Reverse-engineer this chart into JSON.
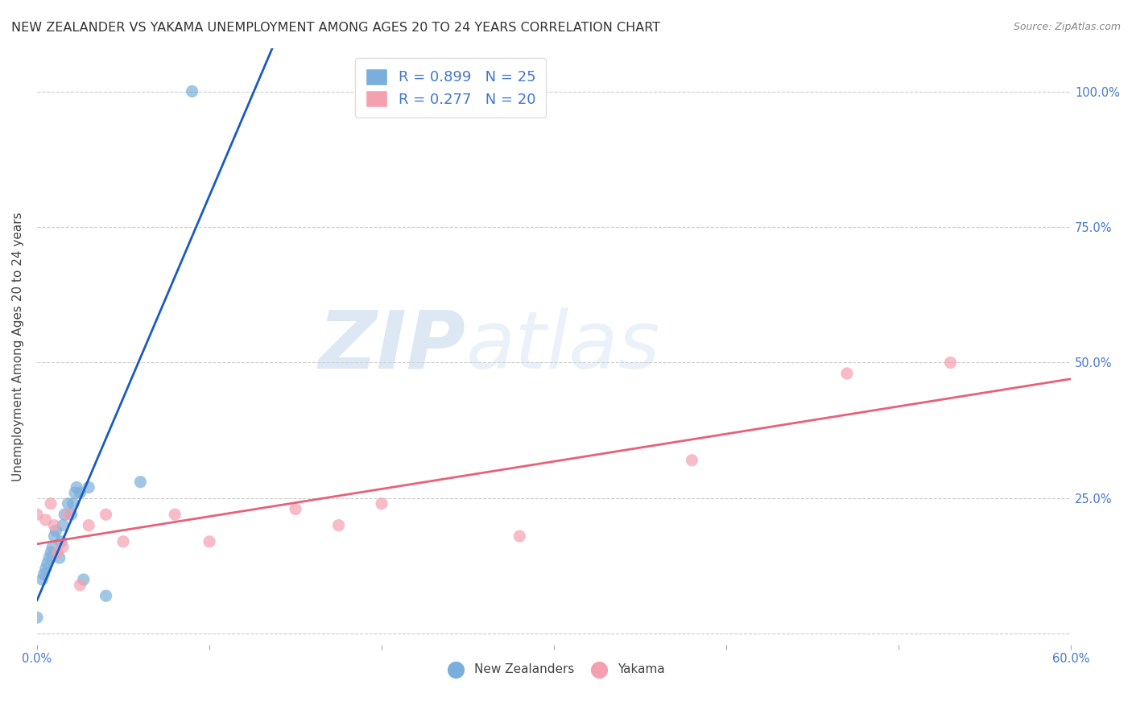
{
  "title": "NEW ZEALANDER VS YAKAMA UNEMPLOYMENT AMONG AGES 20 TO 24 YEARS CORRELATION CHART",
  "source": "Source: ZipAtlas.com",
  "ylabel": "Unemployment Among Ages 20 to 24 years",
  "xlim": [
    0.0,
    0.6
  ],
  "ylim": [
    -0.02,
    1.08
  ],
  "xticks": [
    0.0,
    0.1,
    0.2,
    0.3,
    0.4,
    0.5,
    0.6
  ],
  "xtick_labels_left": "0.0%",
  "xtick_labels_right": "60.0%",
  "ytick_positions": [
    0.0,
    0.25,
    0.5,
    0.75,
    1.0
  ],
  "ytick_labels": [
    "",
    "25.0%",
    "50.0%",
    "75.0%",
    "100.0%"
  ],
  "nz_color": "#7aaedc",
  "yakama_color": "#f4a0b0",
  "nz_line_color": "#1a5bbf",
  "yakama_line_color": "#e8607a",
  "background_color": "#ffffff",
  "grid_color": "#cccccc",
  "tick_color": "#4477cc",
  "legend_r_nz": "R = 0.899",
  "legend_n_nz": "N = 25",
  "legend_r_ya": "R = 0.277",
  "legend_n_ya": "N = 20",
  "legend_label_nz": "New Zealanders",
  "legend_label_ya": "Yakama",
  "nz_x": [
    0.0,
    0.003,
    0.004,
    0.005,
    0.006,
    0.007,
    0.008,
    0.009,
    0.01,
    0.011,
    0.013,
    0.014,
    0.015,
    0.016,
    0.018,
    0.02,
    0.021,
    0.022,
    0.023,
    0.025,
    0.027,
    0.03,
    0.04,
    0.06,
    0.09
  ],
  "nz_y": [
    0.03,
    0.1,
    0.11,
    0.12,
    0.13,
    0.14,
    0.15,
    0.16,
    0.18,
    0.19,
    0.14,
    0.17,
    0.2,
    0.22,
    0.24,
    0.22,
    0.24,
    0.26,
    0.27,
    0.26,
    0.1,
    0.27,
    0.07,
    0.28,
    1.0
  ],
  "ya_x": [
    0.0,
    0.005,
    0.008,
    0.01,
    0.012,
    0.015,
    0.018,
    0.025,
    0.03,
    0.04,
    0.05,
    0.08,
    0.1,
    0.15,
    0.175,
    0.2,
    0.28,
    0.38,
    0.47,
    0.53
  ],
  "ya_y": [
    0.22,
    0.21,
    0.24,
    0.2,
    0.15,
    0.16,
    0.22,
    0.09,
    0.2,
    0.22,
    0.17,
    0.22,
    0.17,
    0.23,
    0.2,
    0.24,
    0.18,
    0.32,
    0.48,
    0.5
  ],
  "title_fontsize": 11.5,
  "axis_label_fontsize": 11,
  "tick_fontsize": 10.5,
  "legend_fontsize": 13,
  "marker_size": 11,
  "marker_alpha": 0.7
}
